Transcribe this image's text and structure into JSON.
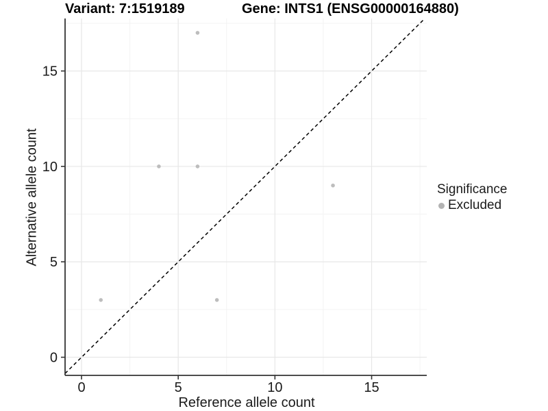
{
  "chart_data": {
    "type": "scatter",
    "title_left": "Variant: 7:1519189",
    "title_right": "Gene: INTS1 (ENSG00000164880)",
    "xlabel": "Reference allele count",
    "ylabel": "Alternative allele count",
    "x_ticks": [
      0,
      5,
      10,
      15
    ],
    "y_ticks": [
      0,
      5,
      10,
      15
    ],
    "minor_tick_step": 2.5,
    "xlim": [
      -0.85,
      17.85
    ],
    "ylim": [
      -0.95,
      17.75
    ],
    "grid": "major+minor",
    "identity_line": {
      "equation": "y = x",
      "style": "dashed",
      "color": "#000000"
    },
    "series": [
      {
        "name": "Excluded",
        "color": "#bdbdbd",
        "points": [
          [
            1,
            3
          ],
          [
            4,
            10
          ],
          [
            6,
            10
          ],
          [
            6,
            17
          ],
          [
            7,
            3
          ],
          [
            13,
            9
          ]
        ]
      }
    ],
    "legend": {
      "title": "Significance",
      "position": "right",
      "items": [
        {
          "label": "Excluded",
          "color": "#b3b3b3"
        }
      ]
    }
  },
  "colors": {
    "background": "#ffffff",
    "grid_major": "#e7e7e7",
    "grid_minor": "#f3f3f3",
    "axis_line": "#333333",
    "tick_text": "#1a1a1a",
    "point": "#bdbdbd"
  }
}
